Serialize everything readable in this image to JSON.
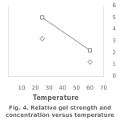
{
  "chart_data": {
    "type": "line",
    "title": "Fig. 4. Relative gel strength and concentration versus temperature",
    "xlabel": "Temperature",
    "series": [
      {
        "type": "line",
        "marker": "square",
        "color": "#888888",
        "x": [
          25,
          60
        ],
        "values": [
          5.0,
          2.2
        ]
      },
      {
        "type": "scatter",
        "marker": "diamond",
        "color": "#888888",
        "x": [
          25,
          60
        ],
        "values": [
          3.2,
          1.2
        ]
      }
    ],
    "xlim": [
      0,
      70
    ],
    "xticks": [
      10,
      20,
      30,
      40,
      50,
      60,
      70
    ],
    "ylim": [
      0,
      6
    ],
    "y2lim": [
      0,
      6
    ],
    "y2ticks": [
      0,
      1,
      2,
      3,
      4,
      5,
      6
    ],
    "grid": false
  }
}
